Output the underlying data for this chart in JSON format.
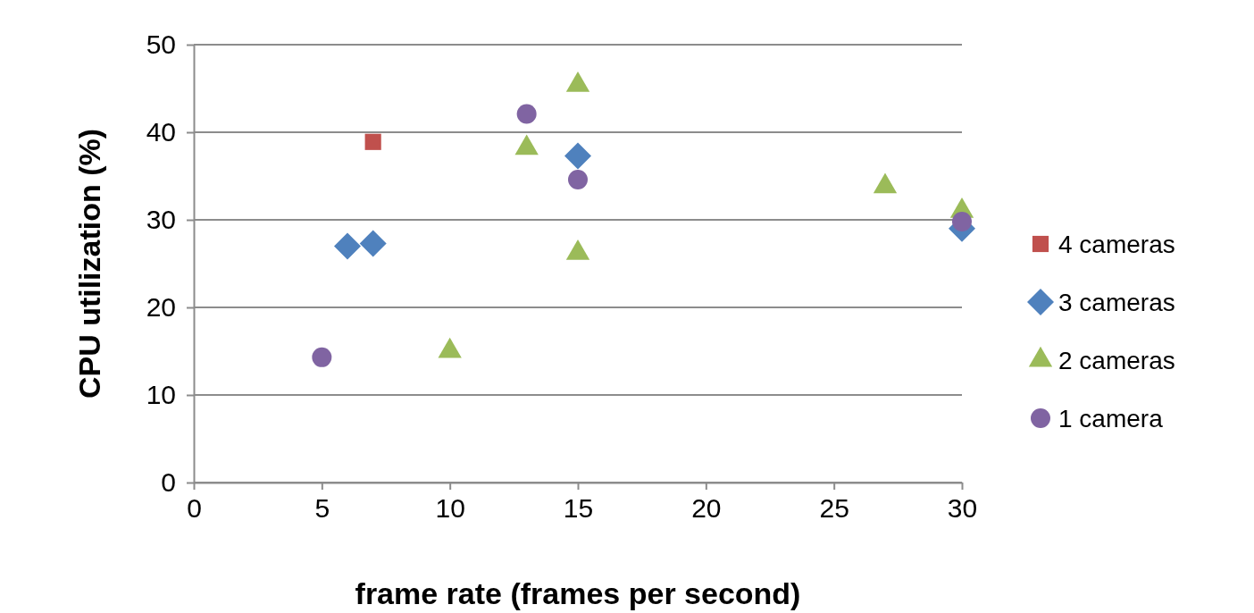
{
  "chart_data": {
    "type": "scatter",
    "xlabel": "frame rate (frames per second)",
    "ylabel": "CPU utilization (%)",
    "xlim": [
      0,
      30
    ],
    "xticks": [
      0,
      5,
      10,
      15,
      20,
      25,
      30
    ],
    "ylim": [
      0,
      50
    ],
    "yticks": [
      0,
      10,
      20,
      30,
      40,
      50
    ],
    "grid": "y",
    "legend": "right",
    "series": [
      {
        "name": "4 cameras",
        "color": "#c0504d",
        "marker": "square",
        "x": [
          7
        ],
        "values": [
          38.9
        ]
      },
      {
        "name": "3 cameras",
        "color": "#4f81bd",
        "marker": "diamond",
        "x": [
          6,
          7,
          15,
          30
        ],
        "values": [
          27.0,
          27.3,
          37.3,
          29.0
        ]
      },
      {
        "name": "2 cameras",
        "color": "#9bbb59",
        "marker": "triangle",
        "x": [
          15,
          13,
          10,
          15,
          27,
          30
        ],
        "values": [
          45.4,
          38.2,
          15.0,
          26.2,
          33.8,
          31.0
        ]
      },
      {
        "name": "1 camera",
        "color": "#8064a2",
        "marker": "circle",
        "x": [
          5,
          13,
          15,
          30
        ],
        "values": [
          14.3,
          42.1,
          34.6,
          29.8
        ]
      }
    ]
  }
}
